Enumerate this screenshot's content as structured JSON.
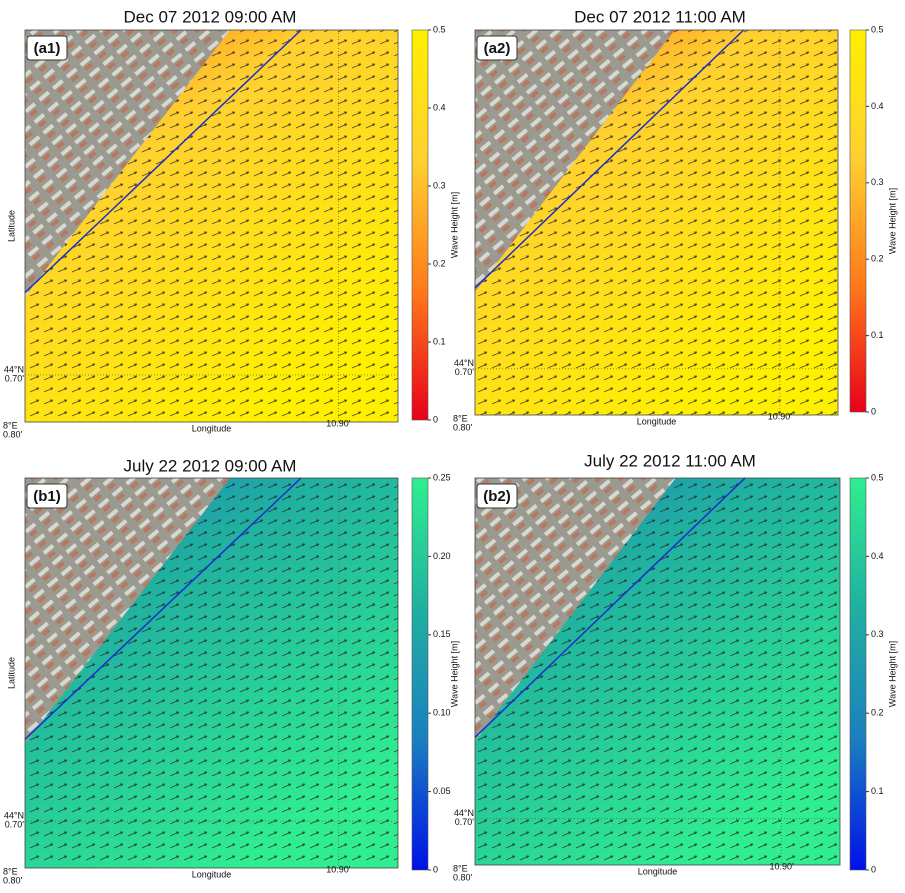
{
  "panels": [
    {
      "title": "Dec 07 2012 09:00 AM",
      "tag": "(a1)",
      "x_label": "Longitude",
      "y_label": "Latitude",
      "lat_tick": [
        "44°N",
        "0.70'"
      ],
      "lon_tick": [
        "8°E",
        "0.80'"
      ],
      "lon_tick2": "10.90'",
      "colorbar": {
        "label": "Wave Height [m]",
        "lim": [
          0,
          0.5
        ],
        "ticks": [
          0,
          0.1,
          0.2,
          0.3,
          0.4,
          0.5
        ],
        "colors": [
          "#e8001a",
          "#ff7a1a",
          "#ffd030",
          "#fff000"
        ]
      }
    },
    {
      "title": "Dec 07 2012 11:00 AM",
      "tag": "(a2)",
      "x_label": "Longitude",
      "lat_tick": [
        "44°N",
        "0.70'"
      ],
      "lon_tick": [
        "8°E",
        "0.80'"
      ],
      "lon_tick2": "10.90'",
      "colorbar": {
        "label": "Wave Height [m]",
        "lim": [
          0,
          0.5
        ],
        "ticks": [
          0,
          0.1,
          0.2,
          0.3,
          0.4,
          0.5
        ],
        "colors": [
          "#e8001a",
          "#ff7a1a",
          "#ffd030",
          "#fff000"
        ]
      }
    },
    {
      "title": "July 22 2012 09:00 AM",
      "tag": "(b1)",
      "x_label": "Longitude",
      "y_label": "Latitude",
      "lat_tick": [
        "44°N",
        "0.70'"
      ],
      "lon_tick": [
        "8°E",
        "0.80'"
      ],
      "lon_tick2": "10.90'",
      "colorbar": {
        "label": "Wave Height [m]",
        "lim": [
          0,
          0.25
        ],
        "ticks": [
          0,
          0.05,
          {
            "value": 0.1,
            "label": "0.10"
          },
          0.15,
          {
            "value": 0.2,
            "label": "0.20"
          },
          0.25
        ],
        "colors": [
          "#0010e8",
          "#1a7fc0",
          "#20b0a0",
          "#30ee90"
        ]
      }
    },
    {
      "title": "July 22 2012 11:00 AM",
      "tag": "(b2)",
      "x_label": "Longitude",
      "lat_tick": [
        "44°N",
        "0.70'"
      ],
      "lon_tick": [
        "8°E",
        "0.80'"
      ],
      "lon_tick2": "10.90'",
      "colorbar": {
        "label": "Wave Height [m]",
        "lim": [
          0,
          0.5
        ],
        "ticks": [
          0,
          0.1,
          0.2,
          0.3,
          0.4,
          0.5
        ],
        "colors": [
          "#0010e8",
          "#1a7fc0",
          "#20b0a0",
          "#30ee90"
        ]
      }
    }
  ]
}
